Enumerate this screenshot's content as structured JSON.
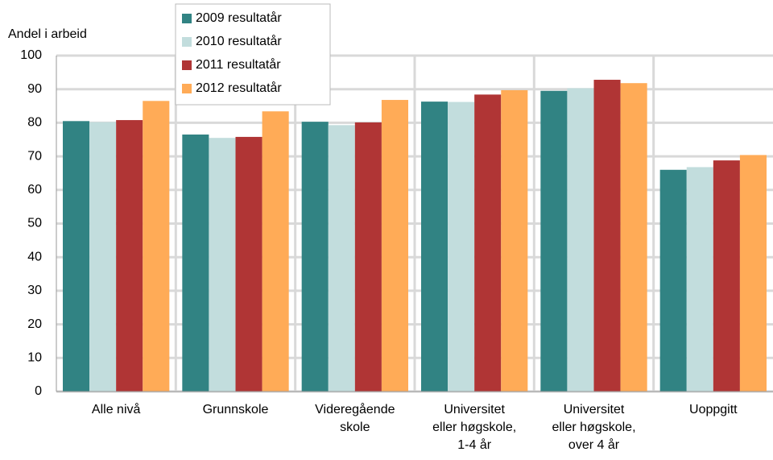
{
  "chart_data": {
    "type": "bar",
    "y_axis_label": "Andel i arbeid",
    "categories": [
      "Alle nivå",
      "Grunnskole",
      "Videregående skole",
      "Universitet eller høgskole, 1-4 år",
      "Universitet eller høgskole, over 4 år",
      "Uoppgitt"
    ],
    "series": [
      {
        "name": "2009 resultatår",
        "color": "#318383",
        "values": [
          80.5,
          76.5,
          80.3,
          86.3,
          89.5,
          66
        ]
      },
      {
        "name": "2010 resultatår",
        "color": "#c2dddd",
        "values": [
          80.2,
          75.5,
          79.3,
          86.2,
          90.3,
          66.8
        ]
      },
      {
        "name": "2011 resultatår",
        "color": "#b03535",
        "values": [
          80.8,
          75.8,
          80.1,
          88.4,
          92.8,
          68.8
        ]
      },
      {
        "name": "2012 resultatår",
        "color": "#ffab57",
        "values": [
          86.5,
          83.4,
          86.8,
          89.7,
          91.8,
          70.4
        ]
      }
    ],
    "ylim": [
      0,
      100
    ],
    "yticks": [
      0,
      10,
      20,
      30,
      40,
      50,
      60,
      70,
      80,
      90,
      100
    ],
    "grid": true,
    "legend": "top-left"
  }
}
